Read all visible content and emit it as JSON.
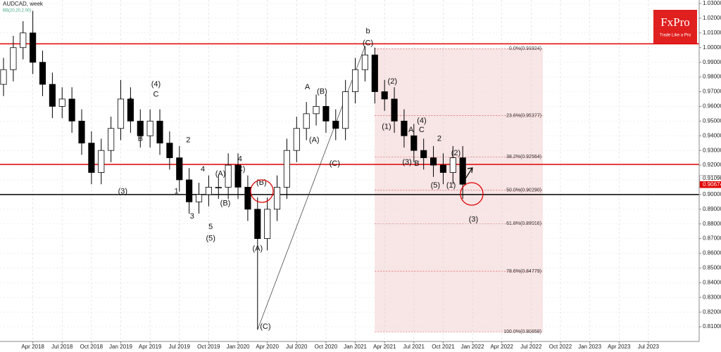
{
  "chart_data": {
    "type": "candlestick",
    "title": "AUDCAD, week",
    "subtitle": "BB(20,20,2.00)",
    "brand": {
      "name": "FxPro",
      "tagline": "Trade Like a Pro"
    },
    "x": [
      0,
      1,
      2,
      3,
      4,
      5,
      6,
      7,
      8,
      9,
      10,
      11,
      12,
      13,
      14,
      15,
      16,
      17,
      18,
      19,
      20,
      21,
      22,
      23,
      24,
      25,
      26,
      27,
      28,
      29,
      30,
      31,
      32,
      33,
      34,
      35,
      36,
      37,
      38,
      39,
      40,
      41,
      42,
      43,
      44,
      45,
      46,
      47
    ],
    "open": [
      0.975,
      0.985,
      1.0,
      1.01,
      0.99,
      0.975,
      0.96,
      0.965,
      0.95,
      0.935,
      0.915,
      0.93,
      0.945,
      0.965,
      0.95,
      0.94,
      0.95,
      0.935,
      0.925,
      0.91,
      0.895,
      0.9,
      0.905,
      0.905,
      0.92,
      0.905,
      0.89,
      0.87,
      0.89,
      0.905,
      0.93,
      0.945,
      0.955,
      0.96,
      0.95,
      0.945,
      0.97,
      0.985,
      0.995,
      0.97,
      0.965,
      0.95,
      0.94,
      0.93,
      0.925,
      0.92,
      0.915,
      0.925
    ],
    "high": [
      0.993,
      1.008,
      1.018,
      1.025,
      0.998,
      0.983,
      0.973,
      0.973,
      0.958,
      0.943,
      0.938,
      0.953,
      0.978,
      0.973,
      0.958,
      0.958,
      0.958,
      0.943,
      0.933,
      0.918,
      0.908,
      0.913,
      0.913,
      0.928,
      0.928,
      0.913,
      0.898,
      0.898,
      0.913,
      0.938,
      0.953,
      0.963,
      0.968,
      0.968,
      0.958,
      0.978,
      0.993,
      1.001,
      1.0,
      0.978,
      0.973,
      0.958,
      0.948,
      0.938,
      0.933,
      0.928,
      0.933,
      0.933
    ],
    "low": [
      0.967,
      0.977,
      0.992,
      0.982,
      0.967,
      0.952,
      0.952,
      0.942,
      0.927,
      0.907,
      0.907,
      0.922,
      0.937,
      0.942,
      0.932,
      0.932,
      0.927,
      0.917,
      0.902,
      0.887,
      0.887,
      0.892,
      0.897,
      0.897,
      0.897,
      0.882,
      0.808,
      0.862,
      0.882,
      0.897,
      0.922,
      0.937,
      0.947,
      0.942,
      0.937,
      0.937,
      0.962,
      0.977,
      0.962,
      0.957,
      0.942,
      0.932,
      0.922,
      0.917,
      0.912,
      0.907,
      0.907,
      0.897
    ],
    "close": [
      0.985,
      1.0,
      1.01,
      0.99,
      0.975,
      0.96,
      0.965,
      0.95,
      0.935,
      0.915,
      0.93,
      0.945,
      0.965,
      0.95,
      0.94,
      0.95,
      0.935,
      0.925,
      0.91,
      0.895,
      0.9,
      0.905,
      0.905,
      0.92,
      0.905,
      0.89,
      0.87,
      0.89,
      0.905,
      0.93,
      0.945,
      0.955,
      0.96,
      0.95,
      0.945,
      0.97,
      0.985,
      0.995,
      0.97,
      0.965,
      0.95,
      0.94,
      0.93,
      0.925,
      0.92,
      0.915,
      0.925,
      0.907
    ],
    "up_color": "#ffffff",
    "down_color": "#000000",
    "xlim": [
      0,
      71.2
    ],
    "xticks": [
      {
        "value": 3,
        "label": "Apr 2018"
      },
      {
        "value": 6,
        "label": "Jul 2018"
      },
      {
        "value": 9,
        "label": "Oct 2018"
      },
      {
        "value": 12,
        "label": "Jan 2019"
      },
      {
        "value": 15,
        "label": "Apr 2019"
      },
      {
        "value": 18,
        "label": "Jul 2019"
      },
      {
        "value": 21,
        "label": "Oct 2019"
      },
      {
        "value": 24,
        "label": "Jan 2020"
      },
      {
        "value": 27,
        "label": "Apr 2020"
      },
      {
        "value": 30,
        "label": "Jul 2020"
      },
      {
        "value": 33,
        "label": "Oct 2020"
      },
      {
        "value": 36,
        "label": "Jan 2021"
      },
      {
        "value": 39,
        "label": "Apr 2021"
      },
      {
        "value": 42,
        "label": "Jul 2021"
      },
      {
        "value": 45,
        "label": "Oct 2021"
      },
      {
        "value": 48,
        "label": "Jan 2022"
      },
      {
        "value": 51,
        "label": "Apr 2022"
      },
      {
        "value": 54,
        "label": "Jul 2022"
      },
      {
        "value": 57,
        "label": "Oct 2022"
      },
      {
        "value": 60,
        "label": "Jan 2023"
      },
      {
        "value": 63,
        "label": "Apr 2023"
      },
      {
        "value": 66,
        "label": "Jul 2023"
      }
    ],
    "ylim": [
      0.8,
      1.0324
    ],
    "yticks": [
      {
        "value": 0.81,
        "label": "0.81000"
      },
      {
        "value": 0.82,
        "label": "0.82000"
      },
      {
        "value": 0.83,
        "label": "0.83000"
      },
      {
        "value": 0.84,
        "label": "0.84000"
      },
      {
        "value": 0.85,
        "label": "0.85000"
      },
      {
        "value": 0.86,
        "label": "0.86000"
      },
      {
        "value": 0.87,
        "label": "0.87000"
      },
      {
        "value": 0.88,
        "label": "0.88000"
      },
      {
        "value": 0.89,
        "label": "0.89000"
      },
      {
        "value": 0.9,
        "label": "0.90000"
      },
      {
        "value": 0.91,
        "label": "0.91000"
      },
      {
        "value": 0.92,
        "label": "0.92000"
      },
      {
        "value": 0.93,
        "label": "0.93000"
      },
      {
        "value": 0.94,
        "label": "0.94000"
      },
      {
        "value": 0.95,
        "label": "0.95000"
      },
      {
        "value": 0.96,
        "label": "0.96000"
      },
      {
        "value": 0.97,
        "label": "0.97000"
      },
      {
        "value": 0.98,
        "label": "0.98000"
      },
      {
        "value": 0.99,
        "label": "0.99000"
      },
      {
        "value": 1.0,
        "label": "1.00000"
      },
      {
        "value": 1.01,
        "label": "1.01000"
      },
      {
        "value": 1.02,
        "label": "1.02000"
      },
      {
        "value": 1.03,
        "label": "1.03000"
      }
    ],
    "grid": true,
    "levels": [
      {
        "value": 1.0026,
        "color": "#e00000"
      },
      {
        "value": 0.9205,
        "color": "#e00000"
      },
      {
        "value": 0.9,
        "color": "#000000"
      }
    ],
    "price_labels": [
      {
        "value": 0.9109,
        "label": "0.91090"
      },
      {
        "value": 0.90674,
        "label": "0.90674"
      }
    ],
    "fib": {
      "x": [
        38,
        55.2
      ],
      "color": "#f6dcdc",
      "levels": [
        {
          "value": 0.99924,
          "label": "0.0%(0.99924)"
        },
        {
          "value": 0.95377,
          "label": "23.6%(0.95377)"
        },
        {
          "value": 0.92564,
          "label": "38.2%(0.92564)"
        },
        {
          "value": 0.9029,
          "label": "50.0%(0.90290)"
        },
        {
          "value": 0.88016,
          "label": "61.8%(0.88016)"
        },
        {
          "value": 0.84779,
          "label": "78.6%(0.84779)"
        },
        {
          "value": 0.80658,
          "label": "100.0%(0.80658)"
        }
      ]
    },
    "annotations": [
      {
        "text": "b",
        "x": 37.3,
        "y": 1.011
      },
      {
        "text": "(C)",
        "x": 37.3,
        "y": 1.003
      },
      {
        "text": "(4)",
        "x": 15.6,
        "y": 0.975
      },
      {
        "text": "C",
        "x": 15.6,
        "y": 0.968
      },
      {
        "text": "A",
        "x": 13,
        "y": 0.964
      },
      {
        "text": "B",
        "x": 14,
        "y": 0.938
      },
      {
        "text": "(3)",
        "x": 12.2,
        "y": 0.902
      },
      {
        "text": "2",
        "x": 18.9,
        "y": 0.937
      },
      {
        "text": "4",
        "x": 20.4,
        "y": 0.917
      },
      {
        "text": "1",
        "x": 17.7,
        "y": 0.902
      },
      {
        "text": "3",
        "x": 19.3,
        "y": 0.885
      },
      {
        "text": "5",
        "x": 21.2,
        "y": 0.878
      },
      {
        "text": "(5)",
        "x": 21.2,
        "y": 0.87
      },
      {
        "text": "(A)",
        "x": 22.2,
        "y": 0.914
      },
      {
        "text": "(B)",
        "x": 22.7,
        "y": 0.894
      },
      {
        "text": "4",
        "x": 24.2,
        "y": 0.924
      },
      {
        "text": "(C)",
        "x": 24.2,
        "y": 0.917
      },
      {
        "text": "(B)",
        "x": 26.4,
        "y": 0.908
      },
      {
        "text": "(A)",
        "x": 26,
        "y": 0.863
      },
      {
        "text": "(C)",
        "x": 26.8,
        "y": 0.81
      },
      {
        "text": "A",
        "x": 31.1,
        "y": 0.973
      },
      {
        "text": "(B)",
        "x": 32.6,
        "y": 0.97
      },
      {
        "text": "(A)",
        "x": 31.8,
        "y": 0.937
      },
      {
        "text": "(C)",
        "x": 33.9,
        "y": 0.921
      },
      {
        "text": "(2)",
        "x": 39.8,
        "y": 0.977
      },
      {
        "text": "(1)",
        "x": 39.2,
        "y": 0.946
      },
      {
        "text": "(4)",
        "x": 42.8,
        "y": 0.95
      },
      {
        "text": "A",
        "x": 41.7,
        "y": 0.944
      },
      {
        "text": "C",
        "x": 42.8,
        "y": 0.944
      },
      {
        "text": "(3)",
        "x": 41.3,
        "y": 0.922
      },
      {
        "text": "B",
        "x": 42.3,
        "y": 0.921
      },
      {
        "text": "2",
        "x": 44.6,
        "y": 0.938
      },
      {
        "text": "(5)",
        "x": 44.2,
        "y": 0.906
      },
      {
        "text": "(2)",
        "x": 46.3,
        "y": 0.928
      },
      {
        "text": "(1)",
        "x": 45.8,
        "y": 0.906
      },
      {
        "text": "(3)",
        "x": 48.1,
        "y": 0.883
      }
    ]
  }
}
